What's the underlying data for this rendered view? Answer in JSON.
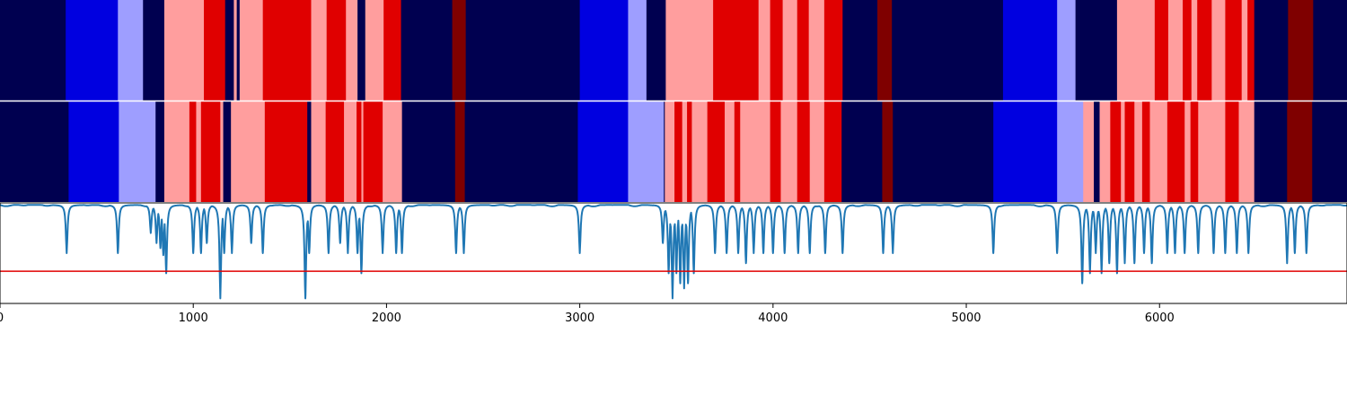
{
  "chart_data": {
    "type": "heatmap",
    "title": "",
    "xlabel": "",
    "ylabel": "",
    "xlim": [
      0,
      6970
    ],
    "xticks": [
      0,
      1000,
      2000,
      3000,
      4000,
      5000,
      6000
    ],
    "xtick_labels": [
      "0",
      "1000",
      "2000",
      "3000",
      "4000",
      "5000",
      "6000"
    ],
    "grid": false,
    "legend": "none",
    "class_colors": {
      "0": "#000050",
      "1": "#0000e0",
      "2": "#9e9eff",
      "3": "#ff9e9e",
      "4": "#e00000",
      "5": "#7f0000"
    },
    "rows": [
      {
        "segments": [
          [
            0,
            340,
            0
          ],
          [
            340,
            610,
            1
          ],
          [
            610,
            740,
            2
          ],
          [
            740,
            850,
            0
          ],
          [
            850,
            1055,
            3
          ],
          [
            1055,
            1165,
            4
          ],
          [
            1165,
            1210,
            0
          ],
          [
            1210,
            1225,
            3
          ],
          [
            1225,
            1240,
            0
          ],
          [
            1240,
            1360,
            3
          ],
          [
            1360,
            1610,
            4
          ],
          [
            1610,
            1690,
            3
          ],
          [
            1690,
            1790,
            4
          ],
          [
            1790,
            1850,
            3
          ],
          [
            1850,
            1890,
            0
          ],
          [
            1890,
            1985,
            3
          ],
          [
            1985,
            2075,
            4
          ],
          [
            2075,
            2340,
            0
          ],
          [
            2340,
            2410,
            5
          ],
          [
            2410,
            3000,
            0
          ],
          [
            3000,
            3250,
            1
          ],
          [
            3250,
            3345,
            2
          ],
          [
            3345,
            3445,
            0
          ],
          [
            3445,
            3690,
            3
          ],
          [
            3690,
            3925,
            4
          ],
          [
            3925,
            3985,
            3
          ],
          [
            3985,
            4050,
            4
          ],
          [
            4050,
            4125,
            3
          ],
          [
            4125,
            4185,
            4
          ],
          [
            4185,
            4265,
            3
          ],
          [
            4265,
            4360,
            4
          ],
          [
            4360,
            4540,
            0
          ],
          [
            4540,
            4615,
            5
          ],
          [
            4615,
            5190,
            0
          ],
          [
            5190,
            5470,
            1
          ],
          [
            5470,
            5565,
            2
          ],
          [
            5565,
            5780,
            0
          ],
          [
            5780,
            5975,
            3
          ],
          [
            5975,
            6045,
            4
          ],
          [
            6045,
            6120,
            3
          ],
          [
            6120,
            6165,
            4
          ],
          [
            6165,
            6195,
            3
          ],
          [
            6195,
            6270,
            4
          ],
          [
            6270,
            6340,
            3
          ],
          [
            6340,
            6425,
            4
          ],
          [
            6425,
            6455,
            3
          ],
          [
            6455,
            6490,
            4
          ],
          [
            6490,
            6665,
            0
          ],
          [
            6665,
            6795,
            5
          ],
          [
            6795,
            6970,
            0
          ]
        ]
      },
      {
        "segments": [
          [
            0,
            355,
            0
          ],
          [
            355,
            615,
            1
          ],
          [
            615,
            805,
            2
          ],
          [
            805,
            850,
            0
          ],
          [
            850,
            980,
            3
          ],
          [
            980,
            1015,
            4
          ],
          [
            1015,
            1040,
            3
          ],
          [
            1040,
            1140,
            4
          ],
          [
            1140,
            1155,
            3
          ],
          [
            1155,
            1195,
            0
          ],
          [
            1195,
            1370,
            3
          ],
          [
            1370,
            1590,
            4
          ],
          [
            1590,
            1610,
            0
          ],
          [
            1610,
            1685,
            3
          ],
          [
            1685,
            1780,
            4
          ],
          [
            1780,
            1845,
            3
          ],
          [
            1845,
            1870,
            4
          ],
          [
            1870,
            1880,
            3
          ],
          [
            1880,
            1980,
            4
          ],
          [
            1980,
            2080,
            3
          ],
          [
            2080,
            2355,
            0
          ],
          [
            2355,
            2405,
            5
          ],
          [
            2405,
            2990,
            0
          ],
          [
            2990,
            3250,
            1
          ],
          [
            3250,
            3435,
            2
          ],
          [
            3435,
            3440,
            0
          ],
          [
            3440,
            3490,
            3
          ],
          [
            3490,
            3530,
            4
          ],
          [
            3530,
            3555,
            3
          ],
          [
            3555,
            3580,
            4
          ],
          [
            3580,
            3660,
            3
          ],
          [
            3660,
            3750,
            4
          ],
          [
            3750,
            3800,
            3
          ],
          [
            3800,
            3830,
            4
          ],
          [
            3830,
            3985,
            3
          ],
          [
            3985,
            4040,
            4
          ],
          [
            4040,
            4125,
            3
          ],
          [
            4125,
            4190,
            4
          ],
          [
            4190,
            4265,
            3
          ],
          [
            4265,
            4355,
            4
          ],
          [
            4355,
            4565,
            0
          ],
          [
            4565,
            4620,
            5
          ],
          [
            4620,
            5140,
            0
          ],
          [
            5140,
            5470,
            1
          ],
          [
            5470,
            5605,
            2
          ],
          [
            5605,
            5660,
            3
          ],
          [
            5660,
            5690,
            0
          ],
          [
            5690,
            5745,
            3
          ],
          [
            5745,
            5800,
            4
          ],
          [
            5800,
            5820,
            3
          ],
          [
            5820,
            5870,
            4
          ],
          [
            5870,
            5910,
            3
          ],
          [
            5910,
            5950,
            4
          ],
          [
            5950,
            6040,
            3
          ],
          [
            6040,
            6130,
            4
          ],
          [
            6130,
            6160,
            3
          ],
          [
            6160,
            6200,
            4
          ],
          [
            6200,
            6340,
            3
          ],
          [
            6340,
            6410,
            4
          ],
          [
            6410,
            6490,
            3
          ],
          [
            6490,
            6660,
            0
          ],
          [
            6660,
            6790,
            5
          ],
          [
            6790,
            6970,
            0
          ]
        ]
      }
    ],
    "line_series": {
      "color": "#1f77b4",
      "ylim": [
        0,
        1
      ],
      "baseline": 0.98,
      "dips": [
        [
          345,
          0.5
        ],
        [
          610,
          0.5
        ],
        [
          780,
          0.7
        ],
        [
          810,
          0.6
        ],
        [
          830,
          0.55
        ],
        [
          845,
          0.48
        ],
        [
          860,
          0.3
        ],
        [
          1000,
          0.5
        ],
        [
          1040,
          0.5
        ],
        [
          1070,
          0.6
        ],
        [
          1140,
          0.05
        ],
        [
          1160,
          0.5
        ],
        [
          1200,
          0.5
        ],
        [
          1300,
          0.6
        ],
        [
          1360,
          0.5
        ],
        [
          1580,
          0.05
        ],
        [
          1600,
          0.5
        ],
        [
          1700,
          0.5
        ],
        [
          1760,
          0.6
        ],
        [
          1800,
          0.5
        ],
        [
          1850,
          0.5
        ],
        [
          1870,
          0.3
        ],
        [
          1980,
          0.5
        ],
        [
          2050,
          0.5
        ],
        [
          2080,
          0.5
        ],
        [
          2360,
          0.5
        ],
        [
          2400,
          0.5
        ],
        [
          3000,
          0.5
        ],
        [
          3430,
          0.6
        ],
        [
          3460,
          0.3
        ],
        [
          3480,
          0.05
        ],
        [
          3500,
          0.3
        ],
        [
          3520,
          0.2
        ],
        [
          3540,
          0.15
        ],
        [
          3560,
          0.2
        ],
        [
          3590,
          0.3
        ],
        [
          3700,
          0.5
        ],
        [
          3760,
          0.5
        ],
        [
          3820,
          0.5
        ],
        [
          3860,
          0.4
        ],
        [
          3900,
          0.5
        ],
        [
          3950,
          0.5
        ],
        [
          4000,
          0.5
        ],
        [
          4060,
          0.5
        ],
        [
          4130,
          0.5
        ],
        [
          4190,
          0.5
        ],
        [
          4270,
          0.5
        ],
        [
          4360,
          0.5
        ],
        [
          4570,
          0.5
        ],
        [
          4620,
          0.5
        ],
        [
          5140,
          0.5
        ],
        [
          5470,
          0.5
        ],
        [
          5600,
          0.2
        ],
        [
          5640,
          0.3
        ],
        [
          5670,
          0.5
        ],
        [
          5700,
          0.3
        ],
        [
          5740,
          0.4
        ],
        [
          5780,
          0.3
        ],
        [
          5820,
          0.4
        ],
        [
          5870,
          0.4
        ],
        [
          5920,
          0.5
        ],
        [
          5960,
          0.4
        ],
        [
          6040,
          0.5
        ],
        [
          6080,
          0.5
        ],
        [
          6130,
          0.5
        ],
        [
          6200,
          0.5
        ],
        [
          6280,
          0.5
        ],
        [
          6340,
          0.5
        ],
        [
          6400,
          0.5
        ],
        [
          6460,
          0.5
        ],
        [
          6660,
          0.4
        ],
        [
          6700,
          0.5
        ],
        [
          6760,
          0.5
        ]
      ]
    },
    "threshold_line": {
      "y": 0.32,
      "color": "#e00000"
    }
  }
}
